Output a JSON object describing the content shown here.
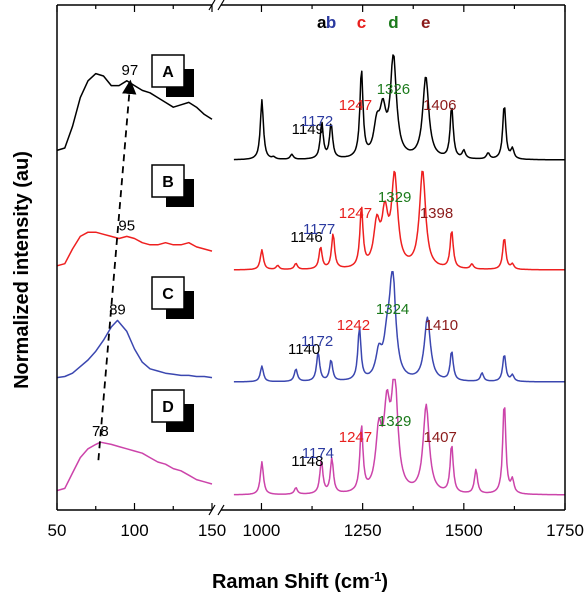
{
  "chart_data": {
    "type": "line",
    "xlabel": "Raman Shift (cm",
    "xlabel_sup": "-1",
    "xlabel_close": ")",
    "ylabel": "Normalized intensity (au)",
    "broken_x_axis": true,
    "x_segments": [
      {
        "range": [
          50,
          150
        ],
        "ticks": [
          "50",
          "100",
          "150"
        ]
      },
      {
        "range": [
          900,
          1750
        ],
        "ticks": [
          "1000",
          "1250",
          "1500",
          "1750"
        ]
      }
    ],
    "band_letters": [
      {
        "text": "a",
        "x": 1149,
        "color": "#000000"
      },
      {
        "text": "b",
        "x": 1172,
        "color": "#2b3aa0"
      },
      {
        "text": "c",
        "x": 1247,
        "color": "#e8201e"
      },
      {
        "text": "d",
        "x": 1326,
        "color": "#1b7a1b"
      },
      {
        "text": "e",
        "x": 1406,
        "color": "#8b1a1a"
      }
    ],
    "low_freq_peak_trend": [
      97,
      95,
      89,
      78
    ],
    "series": [
      {
        "name": "A",
        "color": "#000000",
        "low_peak": "97",
        "low_points": [
          [
            50,
            0.08
          ],
          [
            55,
            0.1
          ],
          [
            60,
            0.28
          ],
          [
            65,
            0.52
          ],
          [
            70,
            0.66
          ],
          [
            75,
            0.72
          ],
          [
            80,
            0.7
          ],
          [
            85,
            0.62
          ],
          [
            90,
            0.62
          ],
          [
            95,
            0.66
          ],
          [
            100,
            0.62
          ],
          [
            105,
            0.58
          ],
          [
            110,
            0.56
          ],
          [
            115,
            0.52
          ],
          [
            120,
            0.48
          ],
          [
            125,
            0.44
          ],
          [
            130,
            0.46
          ],
          [
            135,
            0.48
          ],
          [
            140,
            0.44
          ],
          [
            145,
            0.38
          ],
          [
            150,
            0.34
          ]
        ],
        "high_peaks": [
          [
            1001,
            0.6
          ],
          [
            1030,
            0.02
          ],
          [
            1075,
            0.05
          ],
          [
            1149,
            0.36
          ],
          [
            1172,
            0.35
          ],
          [
            1247,
            0.88
          ],
          [
            1285,
            0.3
          ],
          [
            1300,
            0.42
          ],
          [
            1326,
            1.0
          ],
          [
            1406,
            0.82
          ],
          [
            1470,
            0.52
          ],
          [
            1500,
            0.08
          ],
          [
            1560,
            0.06
          ],
          [
            1600,
            0.55
          ],
          [
            1620,
            0.1
          ]
        ],
        "labels": [
          {
            "text": "1149",
            "x": 1149,
            "color": "#000000"
          },
          {
            "text": "1172",
            "x": 1172,
            "color": "#2b3aa0"
          },
          {
            "text": "1247",
            "x": 1247,
            "color": "#e8201e"
          },
          {
            "text": "1326",
            "x": 1326,
            "color": "#1b7a1b"
          },
          {
            "text": "1406",
            "x": 1406,
            "color": "#8b1a1a"
          }
        ]
      },
      {
        "name": "B",
        "color": "#ee2020",
        "low_peak": "95",
        "low_points": [
          [
            50,
            0.04
          ],
          [
            55,
            0.06
          ],
          [
            60,
            0.2
          ],
          [
            65,
            0.32
          ],
          [
            70,
            0.36
          ],
          [
            75,
            0.36
          ],
          [
            80,
            0.34
          ],
          [
            85,
            0.32
          ],
          [
            90,
            0.3
          ],
          [
            95,
            0.32
          ],
          [
            100,
            0.3
          ],
          [
            105,
            0.26
          ],
          [
            110,
            0.24
          ],
          [
            115,
            0.24
          ],
          [
            120,
            0.26
          ],
          [
            125,
            0.24
          ],
          [
            130,
            0.24
          ],
          [
            135,
            0.26
          ],
          [
            140,
            0.22
          ],
          [
            145,
            0.2
          ],
          [
            150,
            0.18
          ]
        ],
        "high_peaks": [
          [
            1001,
            0.2
          ],
          [
            1040,
            0.04
          ],
          [
            1085,
            0.06
          ],
          [
            1146,
            0.22
          ],
          [
            1177,
            0.35
          ],
          [
            1247,
            0.6
          ],
          [
            1285,
            0.42
          ],
          [
            1305,
            0.5
          ],
          [
            1329,
            0.9
          ],
          [
            1398,
            0.98
          ],
          [
            1470,
            0.38
          ],
          [
            1520,
            0.05
          ],
          [
            1600,
            0.32
          ],
          [
            1620,
            0.05
          ]
        ],
        "labels": [
          {
            "text": "1146",
            "x": 1146,
            "color": "#000000"
          },
          {
            "text": "1177",
            "x": 1177,
            "color": "#2b3aa0"
          },
          {
            "text": "1247",
            "x": 1247,
            "color": "#e8201e"
          },
          {
            "text": "1329",
            "x": 1329,
            "color": "#1b7a1b"
          },
          {
            "text": "1398",
            "x": 1398,
            "color": "#8b1a1a"
          }
        ]
      },
      {
        "name": "C",
        "color": "#3b47b0",
        "low_peak": "89",
        "low_points": [
          [
            50,
            0.04
          ],
          [
            55,
            0.05
          ],
          [
            60,
            0.08
          ],
          [
            65,
            0.14
          ],
          [
            70,
            0.2
          ],
          [
            75,
            0.28
          ],
          [
            80,
            0.38
          ],
          [
            85,
            0.5
          ],
          [
            89,
            0.56
          ],
          [
            95,
            0.46
          ],
          [
            100,
            0.3
          ],
          [
            105,
            0.18
          ],
          [
            110,
            0.12
          ],
          [
            115,
            0.1
          ],
          [
            120,
            0.08
          ],
          [
            125,
            0.07
          ],
          [
            130,
            0.06
          ],
          [
            135,
            0.06
          ],
          [
            140,
            0.05
          ],
          [
            145,
            0.05
          ],
          [
            150,
            0.04
          ]
        ],
        "high_peaks": [
          [
            1001,
            0.15
          ],
          [
            1085,
            0.12
          ],
          [
            1140,
            0.28
          ],
          [
            1172,
            0.2
          ],
          [
            1242,
            0.5
          ],
          [
            1290,
            0.24
          ],
          [
            1310,
            0.3
          ],
          [
            1324,
            1.0
          ],
          [
            1410,
            0.6
          ],
          [
            1470,
            0.28
          ],
          [
            1545,
            0.08
          ],
          [
            1600,
            0.26
          ],
          [
            1620,
            0.06
          ]
        ],
        "labels": [
          {
            "text": "1140",
            "x": 1140,
            "color": "#000000"
          },
          {
            "text": "1172",
            "x": 1172,
            "color": "#2b3aa0"
          },
          {
            "text": "1242",
            "x": 1242,
            "color": "#e8201e"
          },
          {
            "text": "1324",
            "x": 1324,
            "color": "#1b7a1b"
          },
          {
            "text": "1410",
            "x": 1410,
            "color": "#8b1a1a"
          }
        ]
      },
      {
        "name": "D",
        "color": "#cc44aa",
        "low_peak": "78",
        "low_points": [
          [
            50,
            0.04
          ],
          [
            55,
            0.06
          ],
          [
            60,
            0.2
          ],
          [
            65,
            0.34
          ],
          [
            70,
            0.42
          ],
          [
            75,
            0.46
          ],
          [
            78,
            0.48
          ],
          [
            85,
            0.46
          ],
          [
            90,
            0.44
          ],
          [
            95,
            0.42
          ],
          [
            100,
            0.4
          ],
          [
            105,
            0.38
          ],
          [
            110,
            0.34
          ],
          [
            115,
            0.3
          ],
          [
            120,
            0.28
          ],
          [
            125,
            0.24
          ],
          [
            130,
            0.22
          ],
          [
            135,
            0.18
          ],
          [
            140,
            0.14
          ],
          [
            145,
            0.12
          ],
          [
            150,
            0.1
          ]
        ],
        "high_peaks": [
          [
            1001,
            0.3
          ],
          [
            1085,
            0.06
          ],
          [
            1148,
            0.3
          ],
          [
            1174,
            0.32
          ],
          [
            1247,
            0.6
          ],
          [
            1290,
            0.52
          ],
          [
            1310,
            0.68
          ],
          [
            1329,
            1.0
          ],
          [
            1407,
            0.8
          ],
          [
            1470,
            0.44
          ],
          [
            1530,
            0.22
          ],
          [
            1600,
            0.84
          ],
          [
            1620,
            0.12
          ]
        ],
        "labels": [
          {
            "text": "1148",
            "x": 1148,
            "color": "#000000"
          },
          {
            "text": "1174",
            "x": 1174,
            "color": "#2b3aa0"
          },
          {
            "text": "1247",
            "x": 1247,
            "color": "#e8201e"
          },
          {
            "text": "1329",
            "x": 1329,
            "color": "#1b7a1b"
          },
          {
            "text": "1407",
            "x": 1407,
            "color": "#8b1a1a"
          }
        ]
      }
    ]
  }
}
